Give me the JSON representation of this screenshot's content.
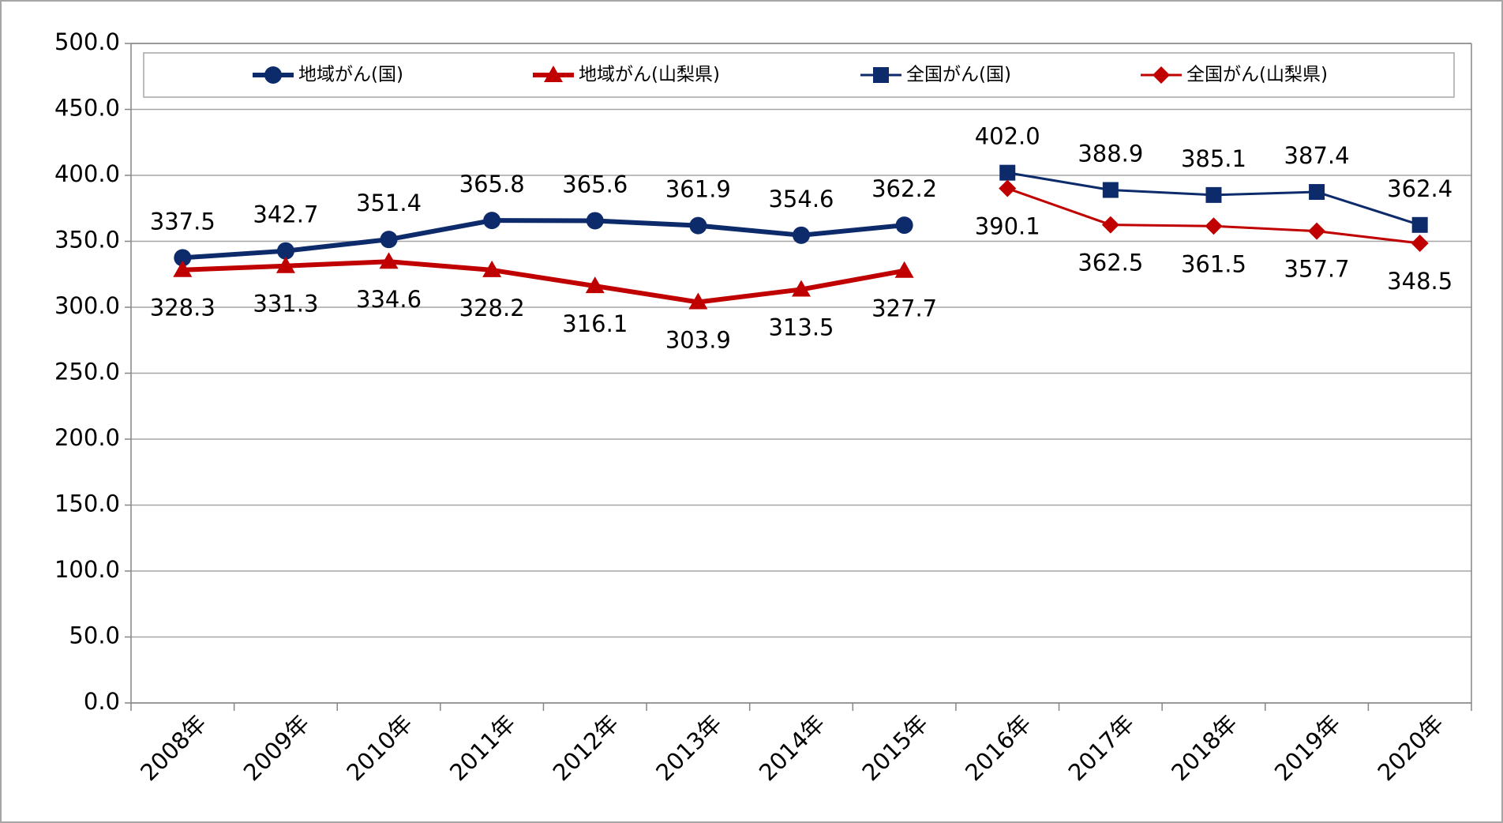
{
  "chart_data": {
    "type": "line",
    "categories": [
      "2008年",
      "2009年",
      "2010年",
      "2011年",
      "2012年",
      "2013年",
      "2014年",
      "2015年",
      "2016年",
      "2017年",
      "2018年",
      "2019年",
      "2020年"
    ],
    "series": [
      {
        "name": "地域がん(国)",
        "color": "#0d2b6b",
        "marker": "circle",
        "line_width": 6,
        "values": [
          337.5,
          342.7,
          351.4,
          365.8,
          365.6,
          361.9,
          354.6,
          362.2,
          null,
          null,
          null,
          null,
          null
        ],
        "value_labels": [
          "337.5",
          "342.7",
          "351.4",
          "365.8",
          "365.6",
          "361.9",
          "354.6",
          "362.2",
          null,
          null,
          null,
          null,
          null
        ]
      },
      {
        "name": "地域がん(山梨県)",
        "color": "#c00000",
        "marker": "triangle",
        "line_width": 6,
        "values": [
          328.3,
          331.3,
          334.6,
          328.2,
          316.1,
          303.9,
          313.5,
          327.7,
          null,
          null,
          null,
          null,
          null
        ],
        "value_labels": [
          "328.3",
          "331.3",
          "334.6",
          "328.2",
          "316.1",
          "303.9",
          "313.5",
          "327.7",
          null,
          null,
          null,
          null,
          null
        ]
      },
      {
        "name": "全国がん(国)",
        "color": "#0d2b6b",
        "marker": "square",
        "line_width": 3,
        "values": [
          null,
          null,
          null,
          null,
          null,
          null,
          null,
          null,
          402.0,
          388.9,
          385.1,
          387.4,
          362.4
        ],
        "value_labels": [
          null,
          null,
          null,
          null,
          null,
          null,
          null,
          null,
          "402.0",
          "388.9",
          "385.1",
          "387.4",
          "362.4"
        ]
      },
      {
        "name": "全国がん(山梨県)",
        "color": "#c00000",
        "marker": "diamond",
        "line_width": 3,
        "values": [
          null,
          null,
          null,
          null,
          null,
          null,
          null,
          null,
          390.1,
          362.5,
          361.5,
          357.7,
          348.5
        ],
        "value_labels": [
          null,
          null,
          null,
          null,
          null,
          null,
          null,
          null,
          "390.1",
          "362.5",
          "361.5",
          "357.7",
          "348.5"
        ]
      }
    ],
    "ylim": [
      0,
      500
    ],
    "yticks": [
      {
        "value": 0,
        "label": "0.0"
      },
      {
        "value": 50,
        "label": "50.0"
      },
      {
        "value": 100,
        "label": "100.0"
      },
      {
        "value": 150,
        "label": "150.0"
      },
      {
        "value": 200,
        "label": "200.0"
      },
      {
        "value": 250,
        "label": "250.0"
      },
      {
        "value": 300,
        "label": "300.0"
      },
      {
        "value": 350,
        "label": "350.0"
      },
      {
        "value": 400,
        "label": "400.0"
      },
      {
        "value": 450,
        "label": "450.0"
      },
      {
        "value": 500,
        "label": "500.0"
      }
    ],
    "grid": true,
    "legend": "top"
  }
}
